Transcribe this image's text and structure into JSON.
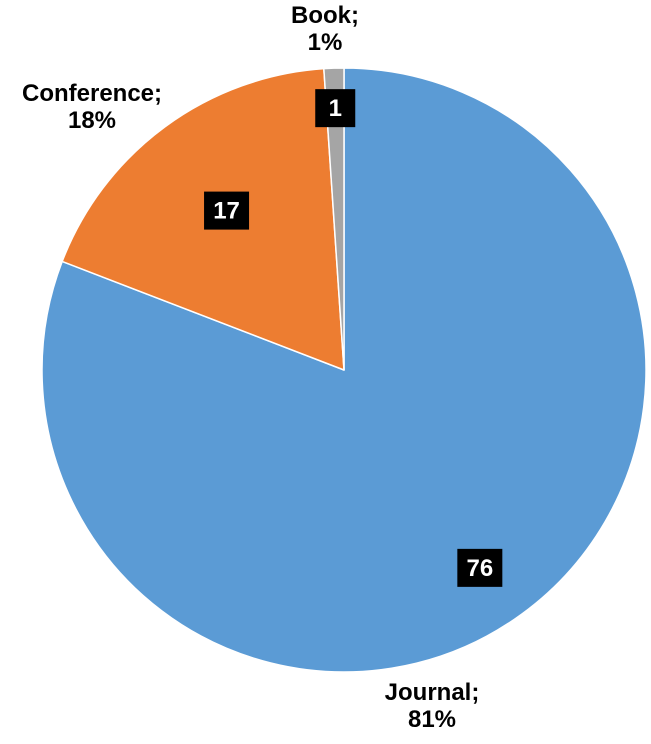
{
  "chart_data": {
    "type": "pie",
    "start_angle_deg": 0,
    "direction": "clockwise",
    "slices": [
      {
        "name": "Journal",
        "value": 76,
        "percent_label": "81%",
        "color": "#5B9BD5",
        "data_label": "76"
      },
      {
        "name": "Conference",
        "value": 17,
        "percent_label": "18%",
        "color": "#ED7D31",
        "data_label": "17"
      },
      {
        "name": "Book",
        "value": 1,
        "percent_label": "1%",
        "color": "#A5A5A5",
        "data_label": "1"
      }
    ],
    "outer_labels": [
      {
        "slice": "Journal",
        "line1": "Journal;",
        "line2": "81%"
      },
      {
        "slice": "Conference",
        "line1": "Conference;",
        "line2": "18%"
      },
      {
        "slice": "Book",
        "line1": "Book;",
        "line2": "1%"
      }
    ],
    "data_label_background": "#000000",
    "data_label_text_color": "#FFFFFF",
    "slice_border_color": "#FFFFFF"
  }
}
